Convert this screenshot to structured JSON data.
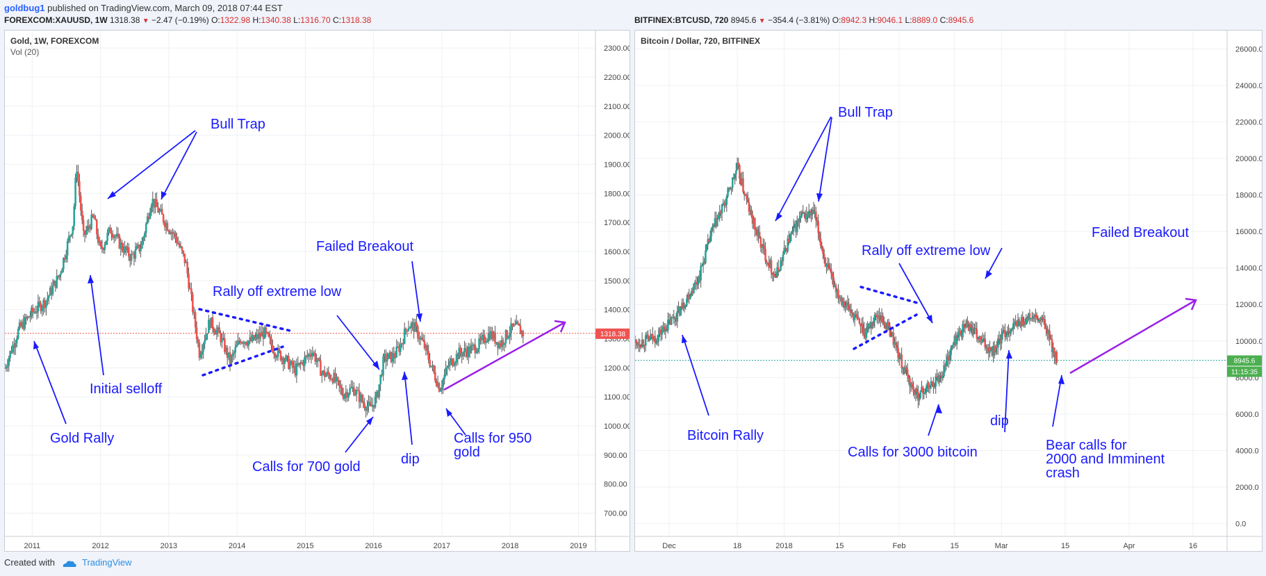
{
  "header": {
    "user": "goldbug1",
    "text": " published on TradingView.com, March 09, 2018 07:44 EST"
  },
  "left_symbol": {
    "ticker": "FOREXCOM:XAUUSD, 1W",
    "price": "1318.38",
    "change": "−2.47 (−0.19%)",
    "o_label": "O:",
    "o": "1322.98",
    "h_label": "H:",
    "h": "1340.38",
    "l_label": "L:",
    "l": "1316.70",
    "c_label": "C:",
    "c": "1318.38"
  },
  "right_symbol": {
    "ticker": "BITFINEX:BTCUSD, 720",
    "price": "8945.6",
    "change": "−354.4 (−3.81%)",
    "o_label": "O:",
    "o": "8942.3",
    "h_label": "H:",
    "h": "9046.1",
    "l_label": "L:",
    "l": "8889.0",
    "c_label": "C:",
    "c": "8945.6"
  },
  "footer": {
    "created": "Created with",
    "brand": "TradingView"
  },
  "colors": {
    "annotation": "#1a1aff",
    "trend": "#9b1fe8",
    "up": "#26a69a",
    "down": "#ef5350",
    "price_tag_gold": "#ef5350",
    "price_tag_btc": "#4caf50"
  },
  "chart_data": [
    {
      "type": "candlestick",
      "title": "Gold, 1W, FOREXCOM",
      "subtitle": "Vol (20)",
      "price_label": "1318.38",
      "ylim": [
        620,
        2360
      ],
      "yticks": [
        "700.00",
        "800.00",
        "900.00",
        "1000.00",
        "1100.00",
        "1200.00",
        "1300.00",
        "1400.00",
        "1500.00",
        "1600.00",
        "1700.00",
        "1800.00",
        "1900.00",
        "2000.00",
        "2100.00",
        "2200.00",
        "2300.00"
      ],
      "xticks": [
        "2011",
        "2012",
        "2013",
        "2014",
        "2015",
        "2016",
        "2017",
        "2018",
        "2019"
      ],
      "xlim": [
        2010.6,
        2019.25
      ],
      "series": [
        {
          "x": [
            2010.6,
            2010.8,
            2011.0,
            2011.2,
            2011.4,
            2011.6,
            2011.65,
            2011.75,
            2011.9,
            2012.0,
            2012.15,
            2012.3,
            2012.45,
            2012.6,
            2012.75,
            2012.95,
            2013.1,
            2013.25,
            2013.45,
            2013.6,
            2013.75,
            2013.9,
            2014.05,
            2014.2,
            2014.4,
            2014.55,
            2014.7,
            2014.85,
            2015.0,
            2015.1,
            2015.25,
            2015.4,
            2015.55,
            2015.7,
            2015.85,
            2015.95,
            2016.05,
            2016.15,
            2016.3,
            2016.4,
            2016.5,
            2016.6,
            2016.75,
            2016.9,
            2016.97,
            2017.1,
            2017.25,
            2017.4,
            2017.55,
            2017.7,
            2017.85,
            2018.0,
            2018.1,
            2018.19
          ],
          "y": [
            1200,
            1330,
            1390,
            1430,
            1520,
            1700,
            1900,
            1650,
            1720,
            1600,
            1680,
            1620,
            1580,
            1620,
            1780,
            1700,
            1650,
            1560,
            1250,
            1360,
            1310,
            1220,
            1300,
            1290,
            1320,
            1260,
            1230,
            1190,
            1230,
            1260,
            1180,
            1170,
            1110,
            1130,
            1080,
            1060,
            1100,
            1230,
            1240,
            1280,
            1350,
            1340,
            1270,
            1170,
            1130,
            1210,
            1250,
            1260,
            1280,
            1320,
            1280,
            1330,
            1340,
            1318
          ]
        }
      ],
      "annotations": [
        "Bull Trap",
        "Failed Breakout",
        "Rally off extreme low",
        "Initial selloff",
        "Gold Rally",
        "Calls for 700 gold",
        "dip",
        "Calls for 950",
        "gold"
      ]
    },
    {
      "type": "candlestick",
      "title": "Bitcoin / Dollar, 720, BITFINEX",
      "price_label": "8945.6",
      "timer_label": "11:15:35",
      "ylim": [
        -700,
        27000
      ],
      "yticks": [
        "0.0",
        "2000.0",
        "4000.0",
        "6000.0",
        "8000.0",
        "10000.0",
        "12000.0",
        "14000.0",
        "16000.0",
        "18000.0",
        "20000.0",
        "22000.0",
        "24000.0",
        "26000.0"
      ],
      "xticks": [
        "Dec",
        "18",
        "2018",
        "15",
        "Feb",
        "15",
        "Mar",
        "15",
        "Apr",
        "16"
      ],
      "xlim": [
        0,
        139
      ],
      "series": [
        {
          "x": [
            0,
            5,
            10,
            15,
            18,
            21,
            24,
            27,
            30,
            33,
            36,
            39,
            42,
            45,
            48,
            51,
            54,
            57,
            60,
            63,
            66,
            69,
            72,
            75,
            78,
            81,
            84,
            87,
            90,
            93,
            96,
            99
          ],
          "y": [
            9900,
            10200,
            11500,
            13500,
            16000,
            17500,
            19500,
            17000,
            15000,
            13500,
            15500,
            16800,
            17000,
            14000,
            12500,
            11500,
            10500,
            11500,
            10500,
            8500,
            7000,
            7500,
            8200,
            10000,
            11000,
            10000,
            9500,
            10500,
            11000,
            11300,
            11000,
            8950
          ]
        }
      ],
      "annotations": [
        "Bull Trap",
        "Failed Breakout",
        "Rally off extreme low",
        "Bitcoin Rally",
        "Calls for 3000 bitcoin",
        "dip",
        "Bear calls for",
        "2000 and Imminent",
        "crash"
      ]
    }
  ]
}
